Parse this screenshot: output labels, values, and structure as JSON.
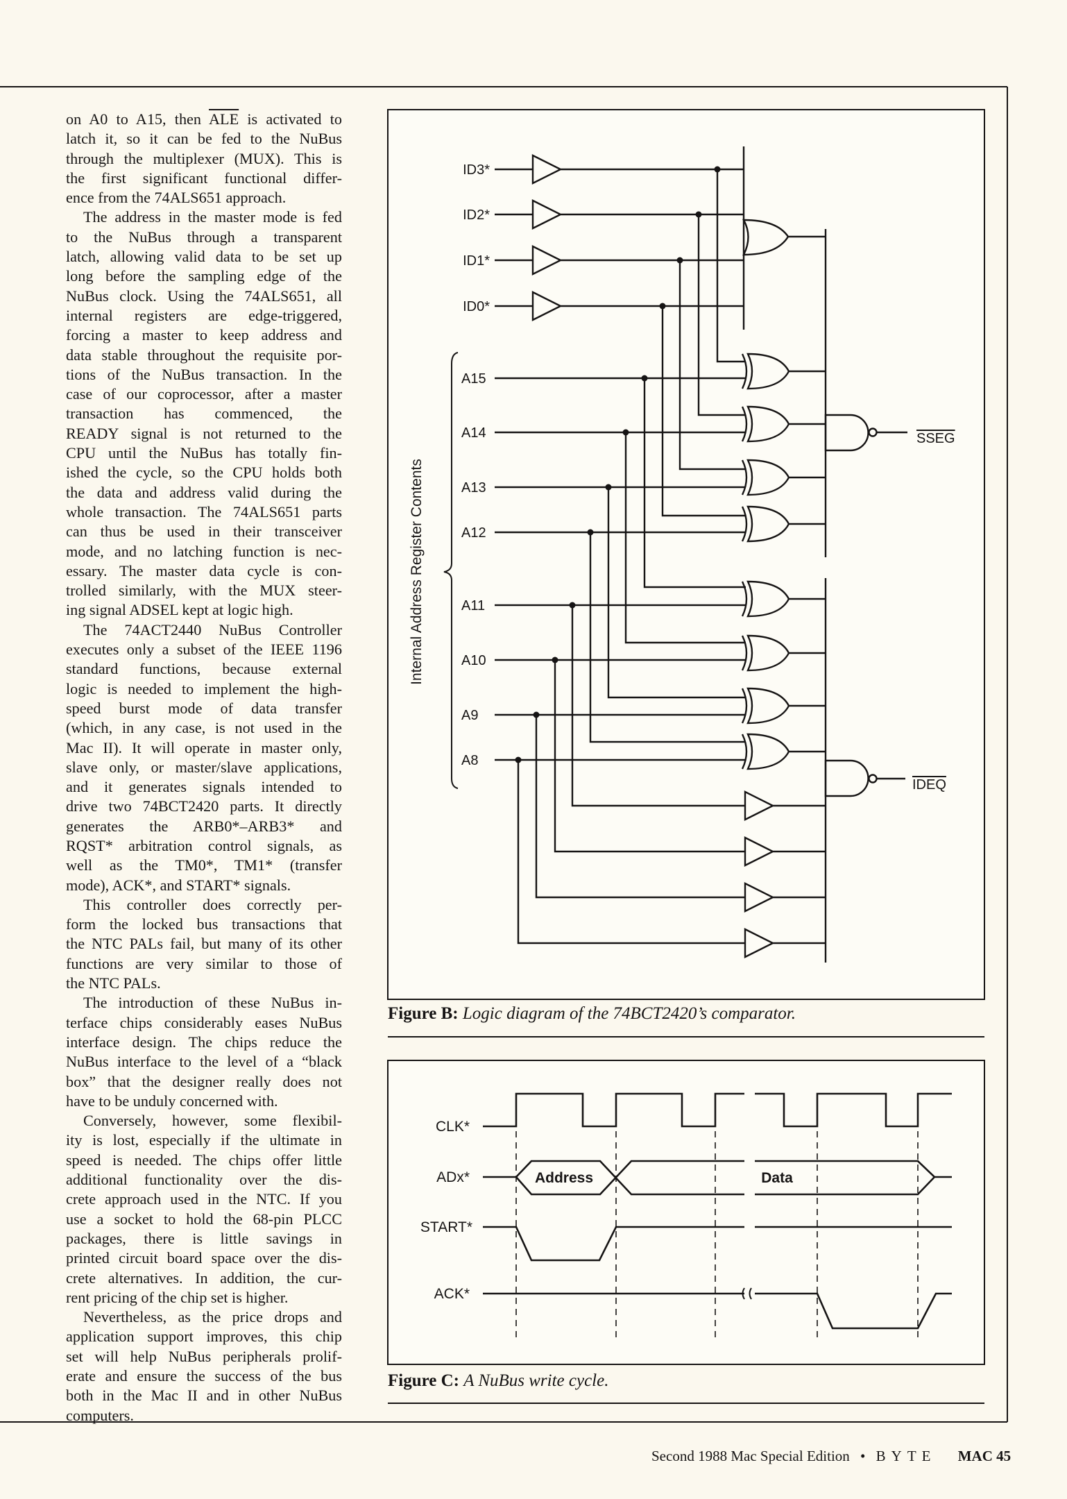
{
  "article": {
    "paragraphs": [
      {
        "indent": false,
        "lines": [
          {
            "pre": "on A0 to A15, then ",
            "over": "ALE",
            "post": " is activated to"
          },
          "latch it, so it can be fed to the NuBus",
          "through the multiplexer (MUX). This is",
          "the first significant functional differ-",
          "ence from the 74ALS651 approach."
        ]
      },
      {
        "indent": true,
        "lines": [
          "The address in the master mode is fed",
          "to the NuBus through a transparent",
          "latch, allowing valid data to be set up",
          "long before the sampling edge of the",
          "NuBus clock. Using the 74ALS651, all",
          "internal registers are edge-triggered,",
          "forcing a master to keep address and",
          "data stable throughout the requisite por-",
          "tions of the NuBus transaction. In the",
          "case of our coprocessor, after a master",
          "transaction has commenced, the",
          "READY signal is not returned to the",
          "CPU until the NuBus has totally fin-",
          "ished the cycle, so the CPU holds both",
          "the data and address valid during the",
          "whole transaction. The 74ALS651 parts",
          "can thus be used in their transceiver",
          "mode, and no latching function is nec-",
          "essary. The master data cycle is con-",
          "trolled similarly, with the MUX steer-",
          "ing signal ADSEL kept at logic high."
        ]
      },
      {
        "indent": true,
        "lines": [
          "The 74ACT2440 NuBus Controller",
          "executes only a subset of the IEEE 1196",
          "standard functions, because external",
          "logic is needed to implement the high-",
          "speed burst mode of data transfer",
          "(which, in any case, is not used in the",
          "Mac II). It will operate in master only,",
          "slave only, or master/slave applications,",
          "and it generates signals intended to",
          "drive two 74BCT2420 parts. It directly",
          "generates the ARB0*–ARB3* and",
          "RQST* arbitration control signals, as",
          "well as the TM0*, TM1* (transfer",
          "mode), ACK*, and START* signals."
        ]
      },
      {
        "indent": true,
        "lines": [
          "This controller does correctly per-",
          "form the locked bus transactions that",
          "the NTC PALs fail, but many of its other",
          "functions are very similar to those of",
          "the NTC PALs."
        ]
      },
      {
        "indent": true,
        "lines": [
          "The introduction of these NuBus in-",
          "terface chips considerably eases NuBus",
          "interface design. The chips reduce the",
          "NuBus interface to the level of a “black",
          "box” that the designer really does not",
          "have to be unduly concerned with."
        ]
      },
      {
        "indent": true,
        "lines": [
          "Conversely, however, some flexibil-",
          "ity is lost, especially if the ultimate in",
          "speed is needed. The chips offer little",
          "additional functionality over the dis-",
          "crete approach used in the NTC. If you",
          "use a socket to hold the 68-pin PLCC",
          "packages, there is little savings in",
          "printed circuit board space over the dis-",
          "crete alternatives. In addition, the cur-",
          "rent pricing of the chip set is higher."
        ]
      },
      {
        "indent": true,
        "lines": [
          "Nevertheless, as the price drops and",
          "application support improves, this chip",
          "set will help NuBus peripherals prolif-",
          "erate and ensure the success of the bus",
          "both in the Mac II and in other NuBus",
          "computers."
        ]
      }
    ]
  },
  "figure_b": {
    "caption_label": "Figure B:",
    "caption_text": "Logic diagram of the 74BCT2420’s comparator.",
    "id_inputs": [
      "ID3*",
      "ID2*",
      "ID1*",
      "ID0*"
    ],
    "address_inputs": [
      "A15",
      "A14",
      "A13",
      "A12",
      "A11",
      "A10",
      "A9",
      "A8"
    ],
    "group_label": "Internal Address Register Contents",
    "output_sseg": "SSEG",
    "output_ideq": "IDEQ"
  },
  "figure_c": {
    "caption_label": "Figure C:",
    "caption_text": "A NuBus write cycle.",
    "signals": [
      "CLK*",
      "ADx*",
      "START*",
      "ACK*"
    ],
    "address_label": "Address",
    "data_label": "Data"
  },
  "footer": {
    "edition": "Second 1988 Mac Special Edition",
    "bullet": "•",
    "magazine": "BYTE",
    "page": "MAC 45"
  },
  "colors": {
    "paper": "#fbf8ee",
    "ink": "#161414",
    "figure_bg": "#fdfcf6"
  }
}
